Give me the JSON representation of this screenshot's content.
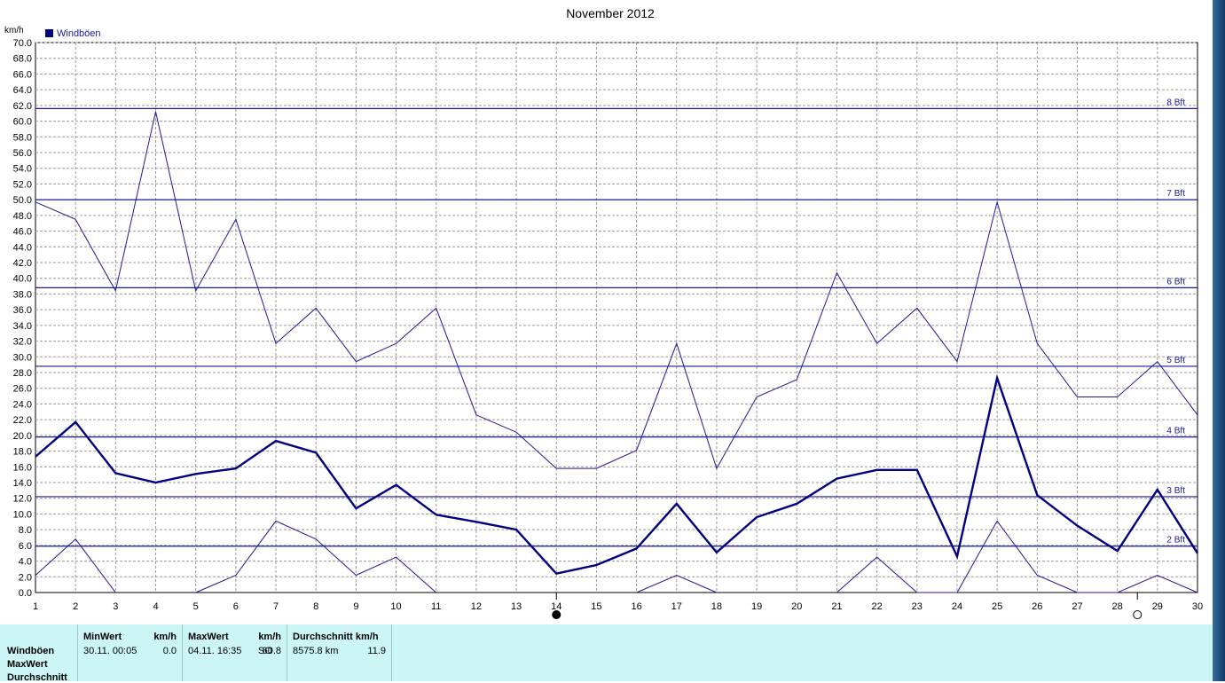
{
  "chart_data": {
    "type": "line",
    "title": "November 2012",
    "ylabel": "km/h",
    "ylim": [
      0,
      70
    ],
    "ystep": 2,
    "grid": true,
    "legend_position": "top-left",
    "x": [
      1,
      2,
      3,
      4,
      5,
      6,
      7,
      8,
      9,
      10,
      11,
      12,
      13,
      14,
      15,
      16,
      17,
      18,
      19,
      20,
      21,
      22,
      23,
      24,
      25,
      26,
      27,
      28,
      29,
      30
    ],
    "series": [
      {
        "name": "Windböen",
        "role": "max",
        "color": "#1a1a99",
        "values": [
          49.7,
          47.5,
          38.4,
          61.2,
          38.4,
          47.5,
          31.7,
          36.2,
          29.4,
          31.7,
          36.2,
          22.6,
          20.4,
          15.8,
          15.8,
          18.1,
          31.7,
          15.8,
          24.9,
          27.1,
          40.7,
          31.7,
          36.2,
          29.4,
          49.7,
          31.7,
          24.9,
          24.9,
          29.4,
          22.6
        ]
      },
      {
        "role": "mean",
        "color": "#000080",
        "values": [
          17.3,
          21.7,
          15.2,
          14.0,
          15.1,
          15.8,
          19.3,
          17.8,
          10.7,
          13.7,
          9.9,
          9.0,
          8.0,
          2.4,
          3.5,
          5.6,
          11.3,
          5.1,
          9.6,
          11.3,
          14.5,
          15.6,
          15.6,
          4.6,
          27.3,
          12.4,
          8.5,
          5.3,
          13.1,
          5.0
        ]
      },
      {
        "role": "min",
        "color": "#1a1a99",
        "values": [
          2.2,
          6.8,
          0,
          null,
          0,
          2.2,
          9.1,
          6.8,
          2.2,
          4.5,
          0,
          null,
          null,
          null,
          null,
          0,
          2.2,
          0,
          null,
          null,
          0,
          4.5,
          0,
          0,
          9.1,
          2.2,
          0,
          0,
          2.2,
          0
        ]
      }
    ],
    "reference_lines": [
      {
        "label": "2 Bft",
        "value": 5.9
      },
      {
        "label": "3 Bft",
        "value": 12.2
      },
      {
        "label": "4 Bft",
        "value": 19.8
      },
      {
        "label": "5 Bft",
        "value": 28.8
      },
      {
        "label": "6 Bft",
        "value": 38.8
      },
      {
        "label": "7 Bft",
        "value": 50.0
      },
      {
        "label": "8 Bft",
        "value": 61.6
      }
    ],
    "moon_markers": [
      {
        "day": 14,
        "phase": "new-moon-icon"
      },
      {
        "day": 28.5,
        "phase": "full-moon-icon"
      }
    ]
  },
  "stats": {
    "row_labels": [
      "Windböen",
      "MaxWert",
      "Durchschnitt"
    ],
    "min": {
      "header": "MinWert",
      "unit": "km/h",
      "time": "30.11.  00:05",
      "value": "0.0"
    },
    "max": {
      "header": "MaxWert",
      "unit": "km/h",
      "time": "04.11.  16:35",
      "dir": "SO",
      "value": "60.8"
    },
    "avg": {
      "header": "Durchschnitt km/h",
      "dist": "8575.8 km",
      "value": "11.9"
    }
  }
}
